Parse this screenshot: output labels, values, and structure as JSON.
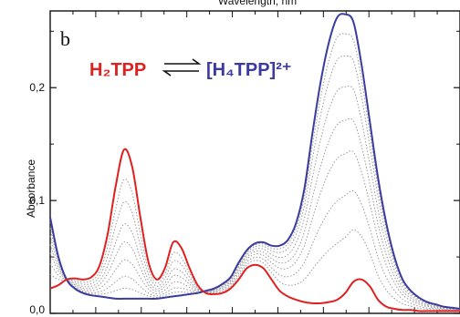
{
  "chart_data": {
    "type": "line",
    "title": "Wavelength, nm",
    "panel_label": "b",
    "ylabel": "Absorbance",
    "xlabel": "",
    "xlim": [
      0,
      1
    ],
    "ylim": [
      0,
      0.268
    ],
    "y_ticks": [
      "0,0",
      "0,1",
      "0,2"
    ],
    "y_tick_values": [
      0.0,
      0.1,
      0.2
    ],
    "grid": false,
    "equation": {
      "left": "H₂TPP",
      "right": "[H₄TPP]²⁺",
      "left_color": "#e02020",
      "right_color": "#3a3aa0"
    },
    "x": [
      0.0,
      0.02,
      0.04,
      0.06,
      0.08,
      0.1,
      0.12,
      0.14,
      0.16,
      0.18,
      0.2,
      0.22,
      0.24,
      0.26,
      0.28,
      0.3,
      0.32,
      0.34,
      0.36,
      0.38,
      0.4,
      0.42,
      0.44,
      0.46,
      0.48,
      0.5,
      0.52,
      0.54,
      0.56,
      0.58,
      0.6,
      0.62,
      0.64,
      0.66,
      0.68,
      0.7,
      0.72,
      0.74,
      0.76,
      0.78,
      0.8,
      0.82,
      0.84,
      0.86,
      0.88,
      0.9,
      0.92,
      0.94,
      0.96,
      0.98,
      1.0
    ],
    "series": [
      {
        "role": "start",
        "color": "#e02020",
        "values": [
          0.022,
          0.025,
          0.03,
          0.031,
          0.03,
          0.032,
          0.042,
          0.07,
          0.113,
          0.145,
          0.13,
          0.085,
          0.045,
          0.03,
          0.04,
          0.063,
          0.058,
          0.04,
          0.025,
          0.018,
          0.017,
          0.018,
          0.022,
          0.03,
          0.04,
          0.043,
          0.04,
          0.03,
          0.02,
          0.015,
          0.012,
          0.01,
          0.009,
          0.009,
          0.01,
          0.012,
          0.018,
          0.028,
          0.03,
          0.024,
          0.012,
          0.006,
          0.004,
          0.003,
          0.003,
          0.002,
          0.002,
          0.002,
          0.002,
          0.002,
          0.002
        ]
      },
      {
        "role": "end",
        "color": "#3a3aa0",
        "values": [
          0.085,
          0.05,
          0.03,
          0.022,
          0.018,
          0.016,
          0.015,
          0.014,
          0.013,
          0.013,
          0.013,
          0.013,
          0.013,
          0.013,
          0.014,
          0.015,
          0.016,
          0.017,
          0.018,
          0.02,
          0.022,
          0.026,
          0.032,
          0.045,
          0.056,
          0.062,
          0.063,
          0.06,
          0.06,
          0.065,
          0.08,
          0.11,
          0.16,
          0.205,
          0.24,
          0.262,
          0.265,
          0.258,
          0.22,
          0.17,
          0.12,
          0.08,
          0.05,
          0.03,
          0.02,
          0.014,
          0.01,
          0.008,
          0.006,
          0.005,
          0.004
        ]
      }
    ],
    "intermediate_steps": [
      0.2,
      0.35,
      0.5,
      0.62,
      0.74,
      0.85,
      0.93
    ],
    "intermediate_color": "#9a9a9a"
  }
}
